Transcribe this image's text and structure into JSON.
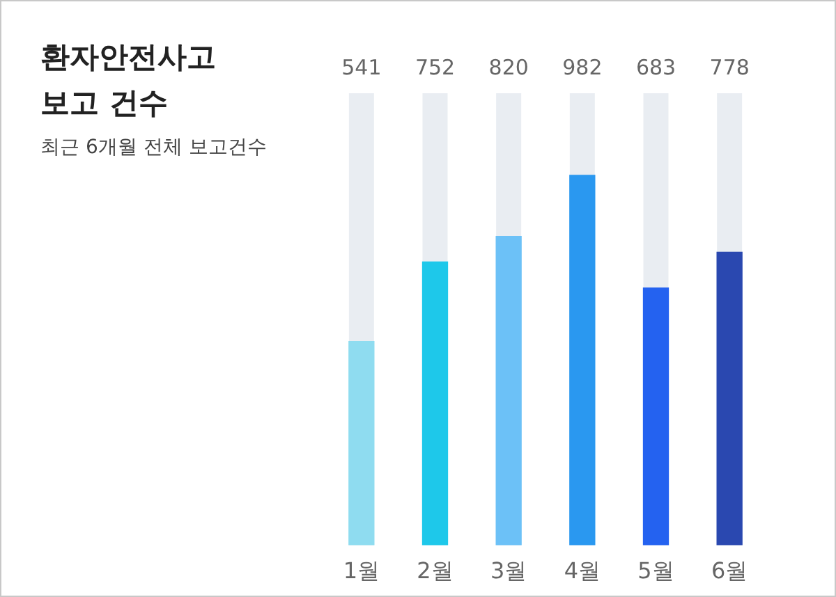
{
  "chart_data": {
    "type": "bar",
    "title": "환자안전사고 보고 건수",
    "subtitle": "최근 6개월 전체 보고건수",
    "categories": [
      "1월",
      "2월",
      "3월",
      "4월",
      "5월",
      "6월"
    ],
    "values": [
      541,
      752,
      820,
      982,
      683,
      778
    ],
    "colors": [
      "#8fdcf0",
      "#1ec8ea",
      "#6cc1f7",
      "#2a98f0",
      "#2462f0",
      "#2a48b0"
    ],
    "data_labels": true,
    "grid": false,
    "legend": false
  }
}
